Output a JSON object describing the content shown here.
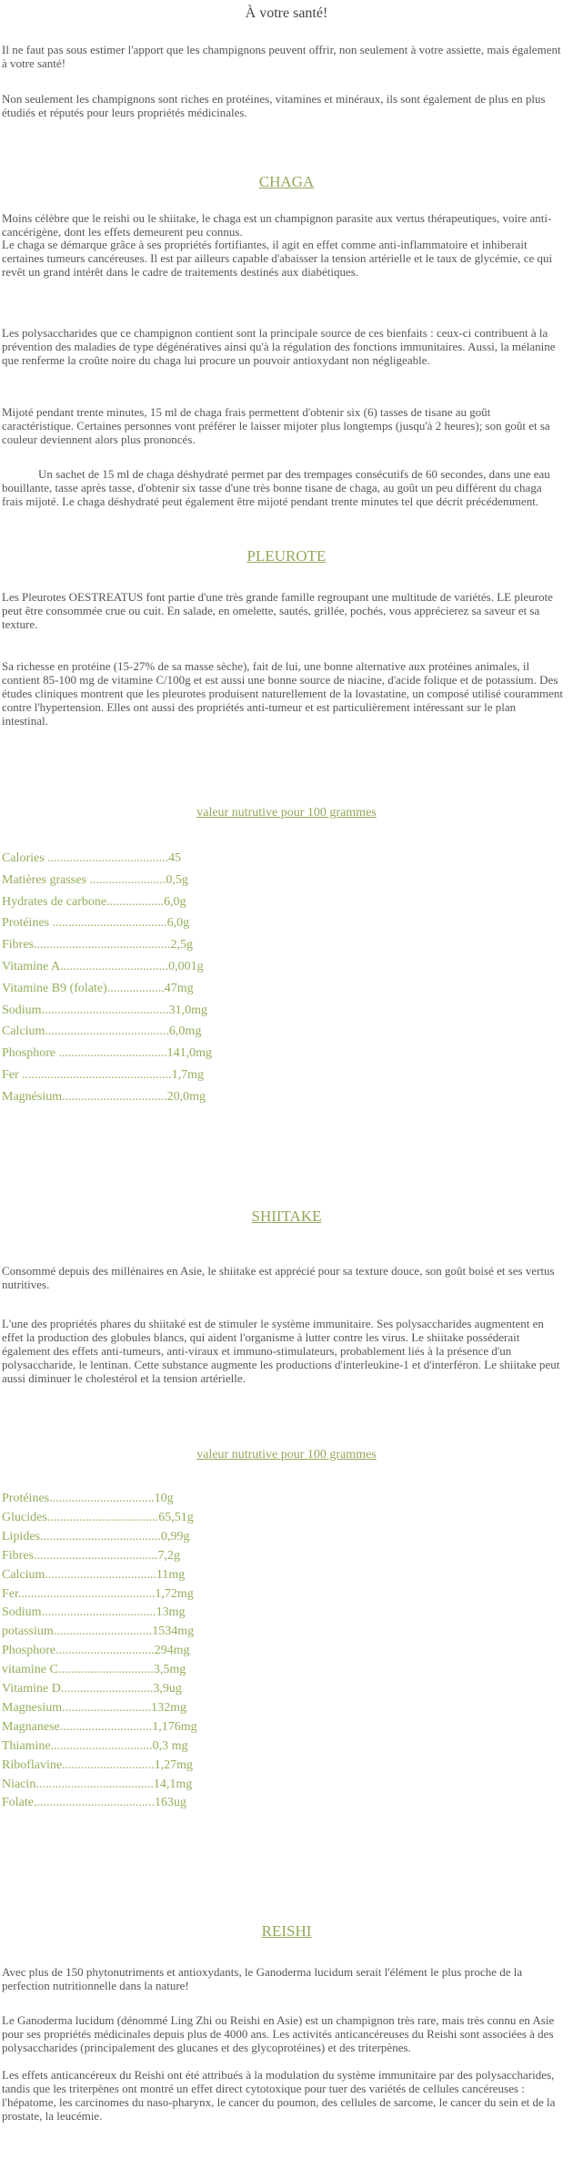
{
  "title": "À votre santé!",
  "intro": [
    "Il ne faut pas sous estimer l'apport que les champignons peuvent offrir, non seulement à votre assiette, mais également à votre santé!",
    "Non seulement les champignons sont riches en protéines, vitamines et minéraux, ils sont également de plus en plus étudiés et réputés pour leurs propriétés médicinales."
  ],
  "sections": [
    {
      "heading": "CHAGA",
      "paragraphs": [
        "Moins célèbre que le reishi ou le shiitake, le chaga est un champignon parasite aux vertus thérapeutiques, voire anti-cancérigène, dont les effets demeurent peu connus.",
        "Le chaga se démarque grâce à ses propriétés fortifiantes, il agit en effet comme anti-inflammatoire et inhiberait certaines tumeurs cancéreuses. Il est par ailleurs capable d'abaisser la tension artérielle et le taux de glycémie, ce qui revêt un grand intérêt dans le cadre de traitements destinés aux diabétiques.",
        "Les polysaccharides que ce champignon contient sont la principale source de ces bienfaits : ceux-ci contribuent à la prévention des maladies de type dégénératives ainsi qu'à la régulation des fonctions immunitaires. Aussi, la mélanine que renferme la croûte noire du chaga lui procure un pouvoir antioxydant non négligeable.",
        "Mijoté pendant trente minutes, 15 ml de chaga frais permettent d'obtenir six (6) tasses de tisane au goût caractéristique.  Certaines personnes vont préférer le laisser mijoter plus longtemps (jusqu'à 2 heures); son goût et sa couleur deviennent alors plus prononcés.",
        "Un sachet de 15 ml de chaga déshydraté permet par des trempages consécutifs de 60 secondes, dans une eau bouillante, tasse après tasse, d'obtenir six tasse d'une très bonne tisane de chaga, au goût un peu différent du chaga frais mijoté.  Le chaga déshydraté peut également être mijoté pendant trente minutes tel que décrit précédemment."
      ]
    },
    {
      "heading": "PLEUROTE",
      "paragraphs": [
        "Les Pleurotes OESTREATUS font partie d'une très grande famille regroupant une multitude de variétés. LE pleurote peut être consommée crue ou cuit. En salade, en omelette, sautés, grillée, pochés, vous apprécierez sa saveur et sa texture.",
        "Sa richesse en protéine (15-27% de sa masse sèche), fait de lui, une bonne alternative aux protéines animales, il contient 85-100 mg de vitamine C/100g et est aussi une bonne source de niacine, d'acide folique et de potassium. Des études cliniques montrent que les pleurotes produisent naturellement de la lovastatine, un composé utilisé couramment contre l'hypertension. Elles ont aussi des propriétés  anti-tumeur et est particulièrement intéressant sur le plan intestinal."
      ],
      "nutrition": {
        "heading": "valeur nutrutive pour 100 grammes",
        "items": [
          "Calories ......................................45",
          "Matières grasses ........................0,5g",
          "Hydrates de carbone..................6,0g",
          "Protéines ....................................6,0g",
          "Fibres...........................................2,5g",
          "Vitamine A..................................0,001g",
          "Vitamine B9 (folate)..................47mg",
          "Sodium........................................31,0mg",
          "Calcium.......................................6,0mg",
          "Phosphore ..................................141,0mg",
          "Fer ...............................................1,7mg",
          "Magnésium.................................20,0mg"
        ]
      }
    },
    {
      "heading": "SHIITAKE",
      "paragraphs": [
        "Consommé depuis des millénaires en Asie, le shiitake est apprécié pour sa texture douce, son goût boisé et ses vertus nutritives.",
        "L'une des propriétés phares du shiitaké est de stimuler le système immunitaire. Ses polysaccharides augmentent en effet la production des globules blancs, qui aident l'organisme à lutter contre les virus. Le shiitake posséderait également des effets anti-tumeurs, anti-viraux et immuno-stimulateurs, probablement liés à la présence d'un polysaccharide, le lentinan. Cette substance augmente les productions d'interleukine-1 et d'interféron. Le shiitake peut aussi diminuer le cholestérol et la tension artérielle."
      ],
      "nutrition": {
        "heading": "valeur nutrutive pour 100 grammes",
        "items": [
          "Protéines.................................10g",
          "Glucides...................................65,51g",
          "Lipides......................................0,99g",
          "Fibres.......................................7,2g",
          "Calcium...................................11mg",
          "Fer...........................................1,72mg",
          "Sodium....................................13mg",
          "potassium...............................1534mg",
          "Phosphore...............................294mg",
          "vitamine C..............................3,5mg",
          "Vitamine D.............................3,9ug",
          "Magnesium............................132mg",
          "Magnanese.............................1,176mg",
          "Thiamine................................0,3 mg",
          "Riboflavine.............................1,27mg",
          "Niacin.....................................14,1mg",
          "Folate......................................163ug"
        ]
      }
    },
    {
      "heading": "REISHI",
      "paragraphs": [
        "Avec plus de 150 phytonutriments et antioxydants, le Ganoderma lucidum serait l'élément le plus proche de la perfection nutritionnelle dans la nature!",
        "Le Ganoderma lucidum (dénommé Ling Zhi ou Reishi en Asie) est un champignon très rare, mais très connu en Asie pour ses propriétés médicinales depuis plus de 4000 ans. Les activités anticancéreuses du Reishi sont associées à des polysaccharides (principalement des glucanes et des glycoprotéines) et des triterpènes.",
        "Les effets anticancéreux du Reishi ont été attribués à la modulation du système immunitaire par des polysaccharides, tandis que les triterpènes ont montré un effet direct cytotoxique pour tuer des variétés de cellules cancéreuses : l'hépatome, les carcinomes du naso-pharynx, le cancer du poumon, des cellules de sarcome, le cancer du sein et de la prostate, la leucémie."
      ]
    }
  ]
}
